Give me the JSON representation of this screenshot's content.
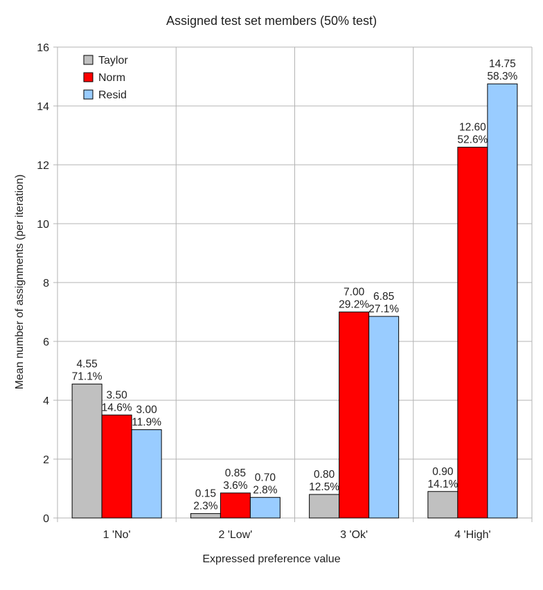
{
  "chart_data": {
    "type": "bar",
    "title": "Assigned test set members (50% test)",
    "xlabel": "Expressed preference value",
    "ylabel": "Mean number of assignments (per iteration)",
    "ylim": [
      0,
      16
    ],
    "yticks": [
      0,
      2,
      4,
      6,
      8,
      10,
      12,
      14,
      16
    ],
    "ytick_labels": [
      "0",
      "2",
      "4",
      "6",
      "8",
      "10",
      "12",
      "14",
      "16"
    ],
    "grid": true,
    "legend_position": "top-left",
    "categories": [
      "1 'No'",
      "2 'Low'",
      "3 'Ok'",
      "4 'High'"
    ],
    "series": [
      {
        "name": "Taylor",
        "color": "#c0c0c0",
        "values": [
          4.55,
          0.15,
          0.8,
          0.9
        ],
        "value_labels": [
          "4.55",
          "0.15",
          "0.80",
          "0.90"
        ],
        "pct_labels": [
          "71.1%",
          "2.3%",
          "12.5%",
          "14.1%"
        ]
      },
      {
        "name": "Norm",
        "color": "#ff0000",
        "values": [
          3.5,
          0.85,
          7.0,
          12.6
        ],
        "value_labels": [
          "3.50",
          "0.85",
          "7.00",
          "12.60"
        ],
        "pct_labels": [
          "14.6%",
          "3.6%",
          "29.2%",
          "52.6%"
        ]
      },
      {
        "name": "Resid",
        "color": "#99ccff",
        "values": [
          3.0,
          0.7,
          6.85,
          14.75
        ],
        "value_labels": [
          "3.00",
          "0.70",
          "6.85",
          "14.75"
        ],
        "pct_labels": [
          "11.9%",
          "2.8%",
          "27.1%",
          "58.3%"
        ]
      }
    ]
  }
}
